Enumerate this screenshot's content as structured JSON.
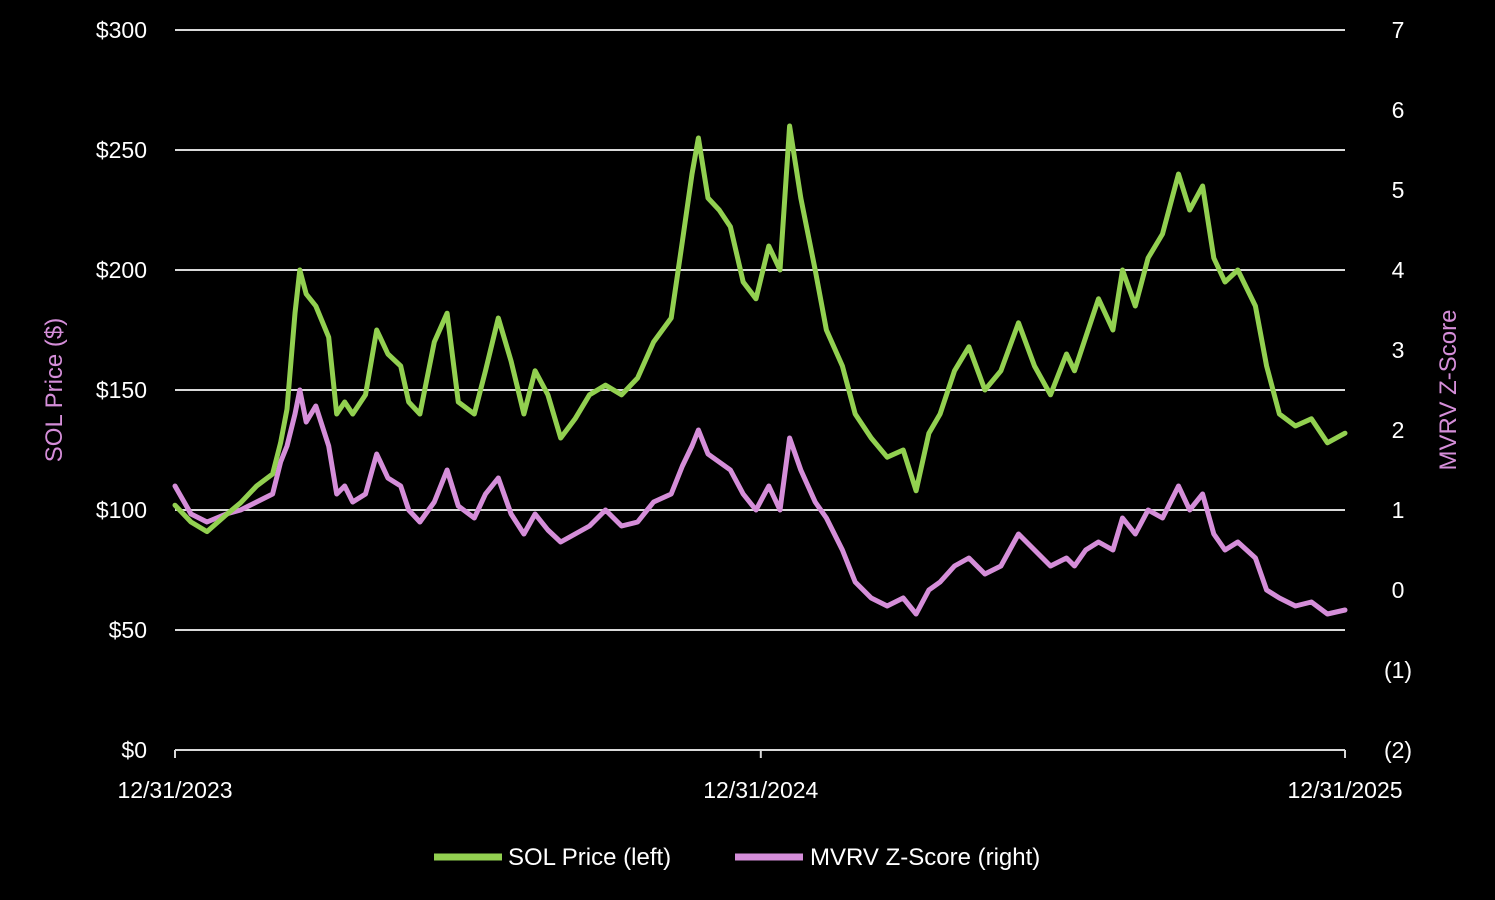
{
  "chart_data": {
    "type": "line",
    "title": "",
    "xlabel": "",
    "ylabel_left": "SOL Price ($)",
    "ylabel_right": "MVRV Z-Score",
    "x_ticks": [
      "12/31/2023",
      "12/31/2024",
      "12/31/2025"
    ],
    "x_range": [
      "12/31/2023",
      "12/31/2025"
    ],
    "y_left": {
      "range": [
        0,
        300
      ],
      "ticks": [
        0,
        50,
        100,
        150,
        200,
        250,
        300
      ],
      "tick_labels": [
        "$0",
        "$50",
        "$100",
        "$150",
        "$200",
        "$250",
        "$300"
      ],
      "grid": true
    },
    "y_right": {
      "range": [
        -2,
        7
      ],
      "ticks": [
        -2,
        -1,
        0,
        1,
        2,
        3,
        4,
        5,
        6,
        7
      ],
      "tick_labels": [
        "(2)",
        "(1)",
        "0",
        "1",
        "2",
        "3",
        "4",
        "5",
        "6",
        "7"
      ]
    },
    "legend_position": "bottom",
    "colors": {
      "background": "#000000",
      "grid": "#d9d9d9",
      "price": "#92d050",
      "zscore": "#d58ed9"
    },
    "series": [
      {
        "name": "SOL Price (left)",
        "axis": "left",
        "x": [
          "2023-12-31",
          "2024-01-10",
          "2024-01-20",
          "2024-02-01",
          "2024-02-10",
          "2024-02-20",
          "2024-03-01",
          "2024-03-06",
          "2024-03-10",
          "2024-03-15",
          "2024-03-18",
          "2024-03-22",
          "2024-03-28",
          "2024-04-05",
          "2024-04-10",
          "2024-04-15",
          "2024-04-20",
          "2024-04-28",
          "2024-05-05",
          "2024-05-12",
          "2024-05-20",
          "2024-05-25",
          "2024-06-01",
          "2024-06-10",
          "2024-06-18",
          "2024-06-25",
          "2024-07-05",
          "2024-07-12",
          "2024-07-20",
          "2024-07-28",
          "2024-08-05",
          "2024-08-12",
          "2024-08-20",
          "2024-08-28",
          "2024-09-06",
          "2024-09-15",
          "2024-09-25",
          "2024-10-05",
          "2024-10-15",
          "2024-10-25",
          "2024-11-05",
          "2024-11-12",
          "2024-11-18",
          "2024-11-22",
          "2024-11-28",
          "2024-12-05",
          "2024-12-12",
          "2024-12-20",
          "2024-12-28",
          "2025-01-05",
          "2025-01-12",
          "2025-01-18",
          "2025-01-25",
          "2025-02-03",
          "2025-02-10",
          "2025-02-20",
          "2025-02-28",
          "2025-03-10",
          "2025-03-20",
          "2025-03-30",
          "2025-04-07",
          "2025-04-15",
          "2025-04-22",
          "2025-05-01",
          "2025-05-10",
          "2025-05-20",
          "2025-05-30",
          "2025-06-10",
          "2025-06-20",
          "2025-06-30",
          "2025-07-10",
          "2025-07-15",
          "2025-07-22",
          "2025-07-30",
          "2025-08-08",
          "2025-08-14",
          "2025-08-22",
          "2025-08-30",
          "2025-09-08",
          "2025-09-18",
          "2025-09-25",
          "2025-10-03",
          "2025-10-10",
          "2025-10-17",
          "2025-10-25",
          "2025-11-05",
          "2025-11-12",
          "2025-11-20",
          "2025-11-30",
          "2025-12-10",
          "2025-12-20",
          "2025-12-31"
        ],
        "values": [
          102,
          95,
          91,
          98,
          103,
          110,
          115,
          128,
          142,
          182,
          200,
          190,
          185,
          172,
          140,
          145,
          140,
          148,
          175,
          165,
          160,
          145,
          140,
          170,
          182,
          145,
          140,
          158,
          180,
          162,
          140,
          158,
          148,
          130,
          138,
          148,
          152,
          148,
          155,
          170,
          180,
          212,
          240,
          255,
          230,
          225,
          218,
          195,
          188,
          210,
          200,
          260,
          230,
          200,
          175,
          160,
          140,
          130,
          122,
          125,
          108,
          132,
          140,
          158,
          168,
          150,
          158,
          178,
          160,
          148,
          165,
          158,
          172,
          188,
          175,
          200,
          185,
          205,
          215,
          240,
          225,
          235,
          205,
          195,
          200,
          185,
          160,
          140,
          135,
          138,
          128,
          132
        ]
      },
      {
        "name": "MVRV Z-Score (right)",
        "axis": "right",
        "x": [
          "2023-12-31",
          "2024-01-10",
          "2024-01-20",
          "2024-02-01",
          "2024-02-10",
          "2024-02-20",
          "2024-03-01",
          "2024-03-06",
          "2024-03-10",
          "2024-03-15",
          "2024-03-18",
          "2024-03-22",
          "2024-03-28",
          "2024-04-05",
          "2024-04-10",
          "2024-04-15",
          "2024-04-20",
          "2024-04-28",
          "2024-05-05",
          "2024-05-12",
          "2024-05-20",
          "2024-05-25",
          "2024-06-01",
          "2024-06-10",
          "2024-06-18",
          "2024-06-25",
          "2024-07-05",
          "2024-07-12",
          "2024-07-20",
          "2024-07-28",
          "2024-08-05",
          "2024-08-12",
          "2024-08-20",
          "2024-08-28",
          "2024-09-06",
          "2024-09-15",
          "2024-09-25",
          "2024-10-05",
          "2024-10-15",
          "2024-10-25",
          "2024-11-05",
          "2024-11-12",
          "2024-11-18",
          "2024-11-22",
          "2024-11-28",
          "2024-12-05",
          "2024-12-12",
          "2024-12-20",
          "2024-12-28",
          "2025-01-05",
          "2025-01-12",
          "2025-01-18",
          "2025-01-25",
          "2025-02-03",
          "2025-02-10",
          "2025-02-20",
          "2025-02-28",
          "2025-03-10",
          "2025-03-20",
          "2025-03-30",
          "2025-04-07",
          "2025-04-15",
          "2025-04-22",
          "2025-05-01",
          "2025-05-10",
          "2025-05-20",
          "2025-05-30",
          "2025-06-10",
          "2025-06-20",
          "2025-06-30",
          "2025-07-10",
          "2025-07-15",
          "2025-07-22",
          "2025-07-30",
          "2025-08-08",
          "2025-08-14",
          "2025-08-22",
          "2025-08-30",
          "2025-09-08",
          "2025-09-18",
          "2025-09-25",
          "2025-10-03",
          "2025-10-10",
          "2025-10-17",
          "2025-10-25",
          "2025-11-05",
          "2025-11-12",
          "2025-11-20",
          "2025-11-30",
          "2025-12-10",
          "2025-12-20",
          "2025-12-31"
        ],
        "values": [
          1.3,
          0.95,
          0.85,
          0.95,
          1.0,
          1.1,
          1.2,
          1.6,
          1.8,
          2.2,
          2.5,
          2.1,
          2.3,
          1.8,
          1.2,
          1.3,
          1.1,
          1.2,
          1.7,
          1.4,
          1.3,
          1.0,
          0.85,
          1.1,
          1.5,
          1.05,
          0.9,
          1.2,
          1.4,
          0.95,
          0.7,
          0.95,
          0.75,
          0.6,
          0.7,
          0.8,
          1.0,
          0.8,
          0.85,
          1.1,
          1.2,
          1.55,
          1.8,
          2.0,
          1.7,
          1.6,
          1.5,
          1.2,
          1.0,
          1.3,
          1.0,
          1.9,
          1.5,
          1.1,
          0.9,
          0.5,
          0.1,
          -0.1,
          -0.2,
          -0.1,
          -0.3,
          0.0,
          0.1,
          0.3,
          0.4,
          0.2,
          0.3,
          0.7,
          0.5,
          0.3,
          0.4,
          0.3,
          0.5,
          0.6,
          0.5,
          0.9,
          0.7,
          1.0,
          0.9,
          1.3,
          1.0,
          1.2,
          0.7,
          0.5,
          0.6,
          0.4,
          0.0,
          -0.1,
          -0.2,
          -0.15,
          -0.3,
          -0.25
        ]
      }
    ]
  }
}
